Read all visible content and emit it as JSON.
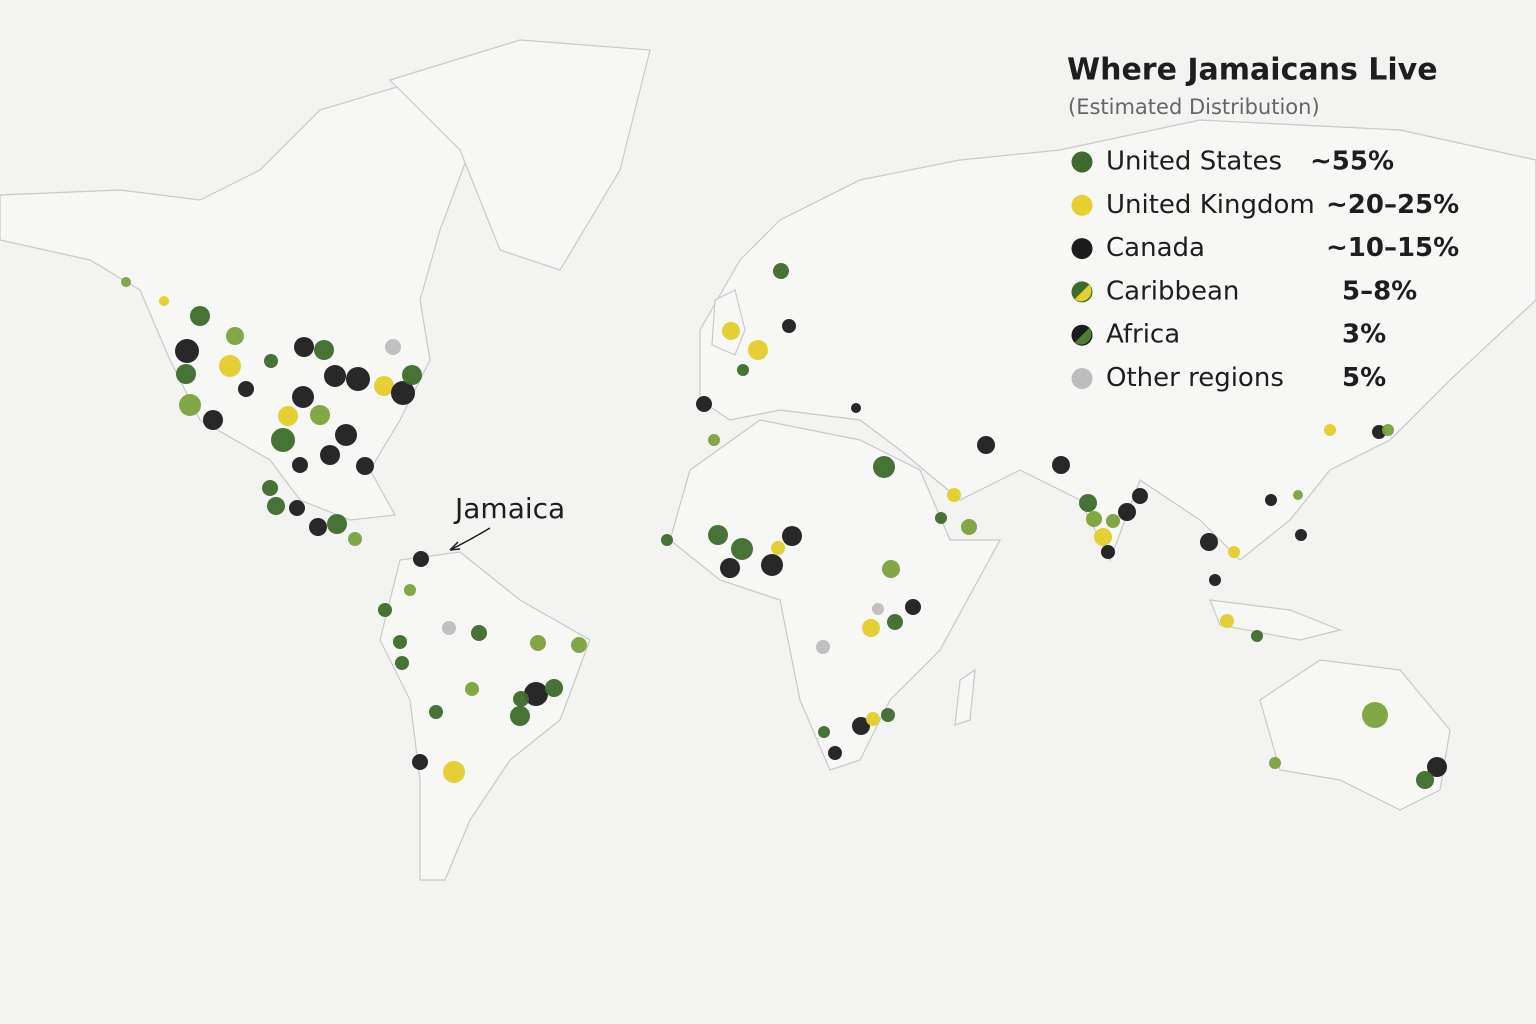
{
  "title": "Where Jamaicans Live",
  "subtitle": "(Estimated Distribution)",
  "annotation": "Jamaica",
  "legend": [
    {
      "label": "United States",
      "value": "~55%",
      "colors": [
        "#3d6b2c"
      ]
    },
    {
      "label": "United Kingdom",
      "value": "~20–25%",
      "colors": [
        "#e6cf2e"
      ]
    },
    {
      "label": "Canada",
      "value": "~10–15%",
      "colors": [
        "#1c1c1c"
      ]
    },
    {
      "label": "Caribbean",
      "value": "5–8%",
      "colors": [
        "#3d6b2c",
        "#e6cf2e"
      ]
    },
    {
      "label": "Africa",
      "value": "3%",
      "colors": [
        "#1c1c1c",
        "#4f7d34"
      ]
    },
    {
      "label": "Other regions",
      "value": "5%",
      "colors": [
        "#bdbdbd"
      ]
    }
  ]
}
